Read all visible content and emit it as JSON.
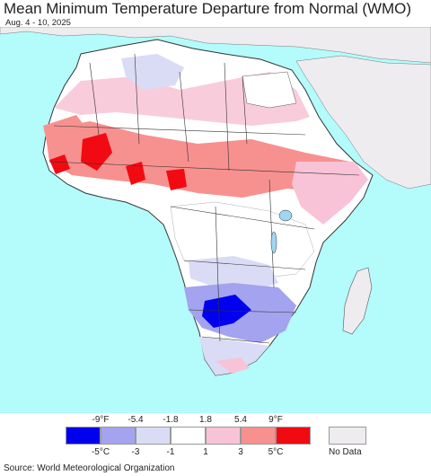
{
  "title": "Mean Minimum Temperature Departure from Normal (WMO)",
  "subtitle": "Aug. 4 - 10, 2025",
  "legend": {
    "fahrenheit_labels": [
      "-9°F",
      "-5.4",
      "-1.8",
      "1.8",
      "5.4",
      "9°F"
    ],
    "celsius_labels": [
      "-5°C",
      "-3",
      "-1",
      "1",
      "3",
      "5°C"
    ],
    "colors": [
      "#0000ee",
      "#a3a3ef",
      "#dadcf5",
      "#ffffff",
      "#f8c3d6",
      "#f7918f",
      "#f20a12"
    ],
    "no_data_label": "No Data",
    "no_data_color": "#efecf0"
  },
  "map_colors": {
    "ocean": "#b4fbfb",
    "no_data_land": "#efecf0",
    "neutral": "#ffffff",
    "light_warm": "#f8c3d6",
    "warm": "#f7918f",
    "hot": "#f20a12",
    "light_cool": "#dadcf5",
    "cool": "#a3a3ef",
    "cold": "#0000ee"
  },
  "source": "Source: World Meteorological Organization"
}
